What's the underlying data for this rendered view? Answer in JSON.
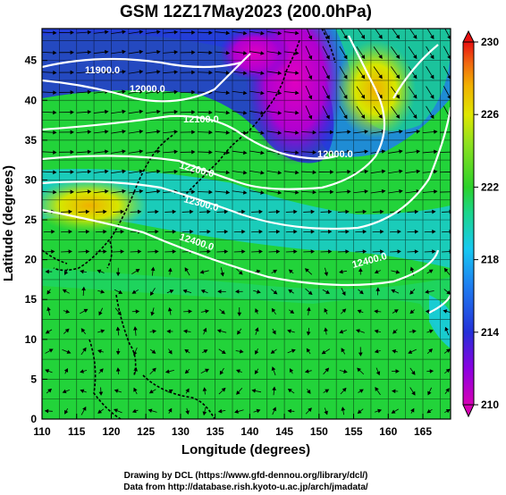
{
  "title": "GSM 12Z17May2023 (200.0hPa)",
  "x_axis": {
    "label": "Longitude (degrees)",
    "ticks": [
      "110",
      "115",
      "120",
      "125",
      "130",
      "135",
      "140",
      "145",
      "150",
      "155",
      "160",
      "165"
    ]
  },
  "y_axis": {
    "label": "Latitude (degrees)",
    "ticks": [
      "0",
      "5",
      "10",
      "15",
      "20",
      "25",
      "30",
      "35",
      "40",
      "45"
    ]
  },
  "colorbar": {
    "ticks": [
      "210",
      "214",
      "218",
      "222",
      "226",
      "230"
    ],
    "colors": [
      "#d600b5",
      "#8a00e0",
      "#2430d8",
      "#1e7ff0",
      "#17c9f0",
      "#1bd58a",
      "#2cd12a",
      "#8ee020",
      "#dfe600",
      "#f0b000",
      "#f06a10",
      "#e81010"
    ]
  },
  "contour_labels": [
    "11900.0",
    "12000.0",
    "12100.0",
    "12200.0",
    "12300.0",
    "12400.0",
    "12000.0",
    "12400.0"
  ],
  "credits": [
    "Drawing by DCL (https://www.gfd-dennou.org/library/dcl/)",
    "Data from http://database.rish.kyoto-u.ac.jp/arch/jmadata/"
  ],
  "chart_data": {
    "type": "heatmap",
    "title": "GSM 12Z17May2023 (200.0hPa)",
    "xlabel": "Longitude (degrees)",
    "ylabel": "Latitude (degrees)",
    "xlim": [
      110,
      169
    ],
    "ylim": [
      0,
      49
    ],
    "colorbar_range": [
      210,
      230
    ],
    "contour_levels": [
      11900,
      12000,
      12100,
      12200,
      12300,
      12400
    ],
    "grid": true
  }
}
